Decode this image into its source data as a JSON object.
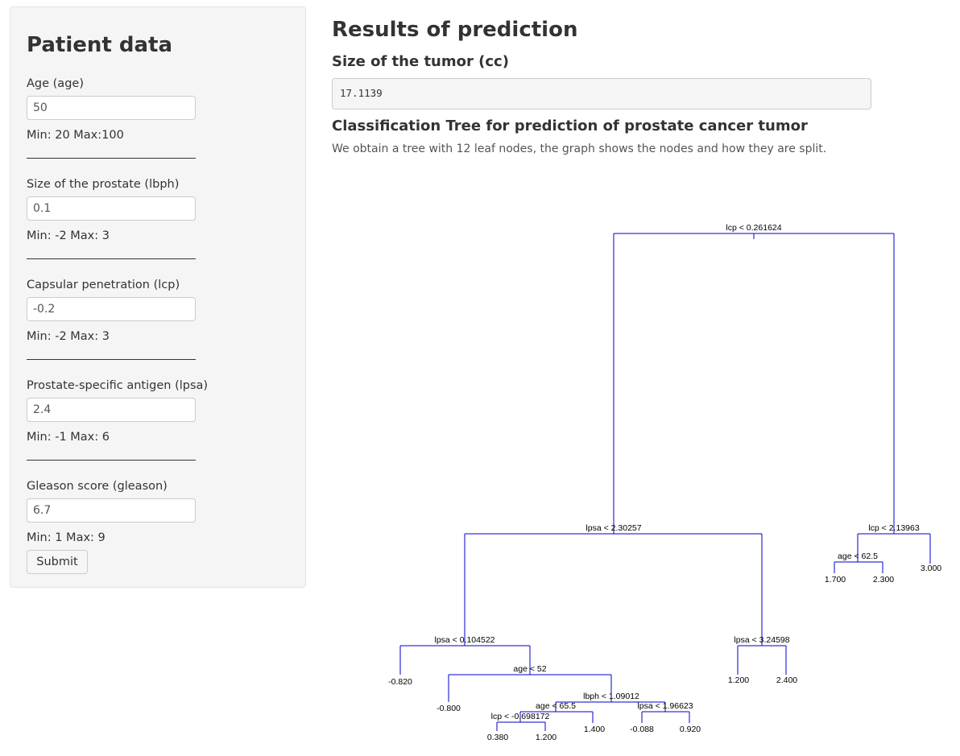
{
  "sidebar": {
    "title": "Patient data",
    "fields": [
      {
        "label": "Age (age)",
        "value": "50",
        "range": "Min: 20 Max:100"
      },
      {
        "label": "Size of the prostate (lbph)",
        "value": "0.1",
        "range": "Min: -2 Max: 3"
      },
      {
        "label": "Capsular penetration (lcp)",
        "value": "-0.2",
        "range": "Min: -2 Max: 3"
      },
      {
        "label": "Prostate-specific antigen (lpsa)",
        "value": "2.4",
        "range": "Min: -1 Max: 6"
      },
      {
        "label": "Gleason score (gleason)",
        "value": "6.7",
        "range": "Min: 1 Max: 9"
      }
    ],
    "submit_label": "Submit"
  },
  "main": {
    "title": "Results of prediction",
    "tumor_heading": "Size of the tumor (cc)",
    "tumor_value": "17.1139",
    "tree_heading": "Classification Tree for prediction of prostate cancer tumor",
    "tree_description": "We obtain a tree with 12 leaf nodes, the graph shows the nodes and how they are split."
  },
  "colors": {
    "tree_line": "#0000cc"
  },
  "tree": {
    "splits": [
      "lcp < 0.261624",
      "lpsa < 2.30257",
      "lcp < 2.13963",
      "age < 62.5",
      "lpsa < 0.104522",
      "lpsa < 3.24598",
      "age < 52",
      "lbph < 1.09012",
      "age < 65.5",
      "lpsa < 1.96623",
      "lcp < -0.698172"
    ],
    "leaves": [
      "1.700",
      "2.300",
      "3.000",
      "-0.820",
      "-0.800",
      "1.200",
      "2.400",
      "0.380",
      "1.200",
      "1.400",
      "-0.088",
      "0.920"
    ]
  }
}
